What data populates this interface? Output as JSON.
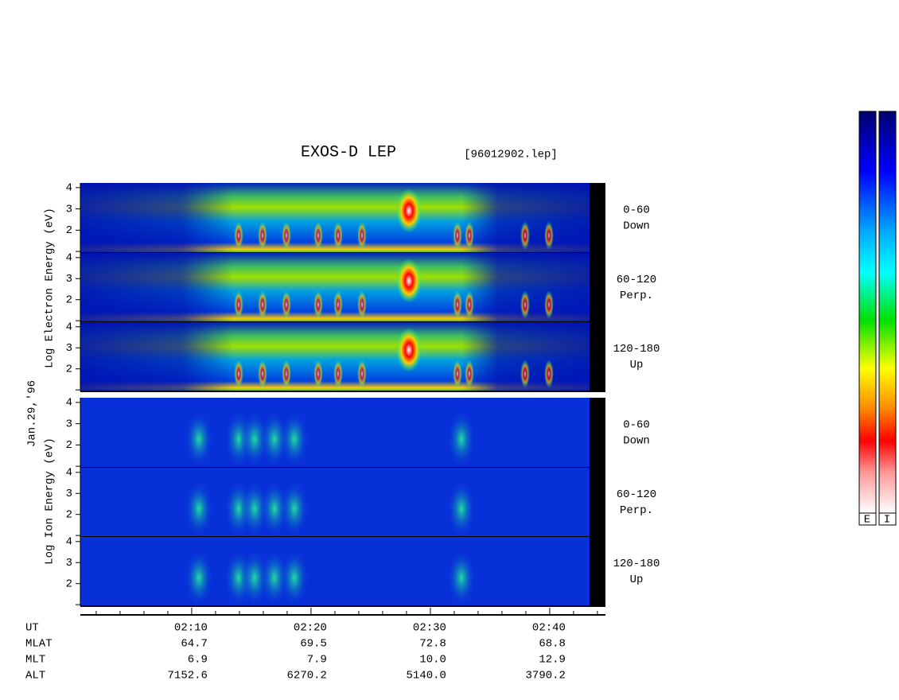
{
  "chart_data": {
    "type": "spectrogram",
    "title": "EXOS-D LEP",
    "file_label": "[96012902.lep]",
    "date_label": "Jan.29,'96",
    "electron_axis_label": "Log Electron Energy (eV)",
    "ion_axis_label": "Log Ion Energy (eV)",
    "panel_labels": [
      [
        "0-60",
        "Down"
      ],
      [
        "60-120",
        "Perp."
      ],
      [
        "120-180",
        "Up"
      ]
    ],
    "ylim": [
      0.93,
      4.22
    ],
    "yticks": [
      2,
      3,
      4
    ],
    "minor_yticks": [
      1
    ],
    "xlim": [
      0.67,
      44.67
    ],
    "xticks": [
      {
        "value": 10,
        "label": "02:10"
      },
      {
        "value": 20,
        "label": "02:20"
      },
      {
        "value": 30,
        "label": "02:30"
      },
      {
        "value": 40,
        "label": "02:40"
      }
    ],
    "minor_xticks": [
      2,
      4,
      6,
      8,
      12,
      14,
      16,
      18,
      22,
      24,
      26,
      28,
      32,
      34,
      36,
      38,
      42,
      44
    ],
    "ephemeris_header": "UT",
    "ephemeris": [
      {
        "label": "MLAT",
        "values": [
          "64.7",
          "69.5",
          "72.8",
          "68.8"
        ]
      },
      {
        "label": "MLT",
        "values": [
          "6.9",
          "7.9",
          "10.0",
          "12.9"
        ]
      },
      {
        "label": "ALT",
        "values": [
          "7152.6",
          "6270.2",
          "5140.0",
          "3790.2"
        ]
      }
    ],
    "colorbar_labels": [
      "E",
      "I"
    ]
  }
}
